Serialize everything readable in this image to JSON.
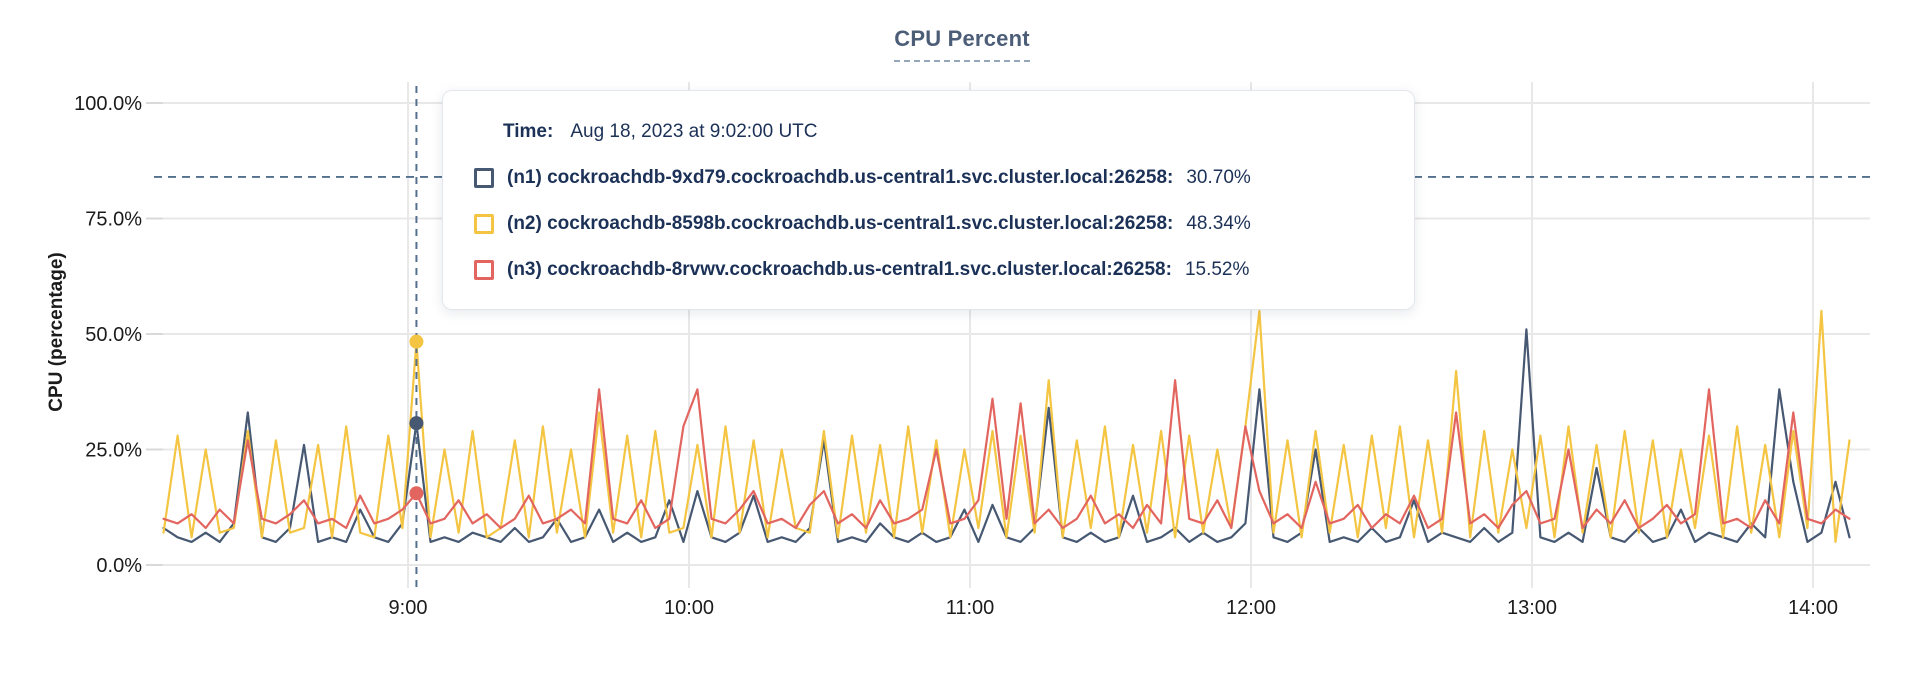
{
  "title": "CPU Percent",
  "tooltip": {
    "time_label": "Time:",
    "time_value": "Aug 18, 2023 at 9:02:00 UTC"
  },
  "colors": {
    "title": "#4c5e77",
    "tooltip_text": "#1c3157",
    "grid": "#e8e8e8",
    "tick_dash": "#d9d9d9",
    "axis_text": "#1b1b1b",
    "hover_guides": "#54708e",
    "background": "#ffffff"
  },
  "chart_data": {
    "type": "line",
    "title": "CPU Percent",
    "xlabel": "",
    "ylabel": "CPU (percentage)",
    "ylim": [
      0,
      100
    ],
    "grid": true,
    "legend_position": "tooltip-overlay",
    "y_ticks": [
      {
        "label": "100.0%",
        "value": 100
      },
      {
        "label": "75.0%",
        "value": 75
      },
      {
        "label": "50.0%",
        "value": 50
      },
      {
        "label": "25.0%",
        "value": 25
      },
      {
        "label": "0.0%",
        "value": 0
      }
    ],
    "x_ticks": [
      {
        "label": "9:00",
        "hour": 9
      },
      {
        "label": "10:00",
        "hour": 10
      },
      {
        "label": "11:00",
        "hour": 11
      },
      {
        "label": "12:00",
        "hour": 12
      },
      {
        "label": "13:00",
        "hour": 13
      },
      {
        "label": "14:00",
        "hour": 14
      }
    ],
    "x_start_hours": 8.13,
    "x_step_hours": 0.05,
    "threshold_line_value": 84,
    "hover": {
      "index": 18,
      "time_text": "Aug 18, 2023 at 9:02:00 UTC"
    },
    "series": [
      {
        "name": "(n1) cockroachdb-9xd79.cockroachdb.us-central1.svc.cluster.local:26258:",
        "color": "#475872",
        "hover_value_text": "30.70%",
        "hover_value": 30.7,
        "values": [
          8,
          6,
          5,
          7,
          5,
          9,
          33,
          6,
          5,
          8,
          26,
          5,
          6,
          5,
          12,
          6,
          5,
          9,
          30.7,
          5,
          6,
          5,
          7,
          6,
          5,
          8,
          5,
          6,
          10,
          5,
          6,
          12,
          5,
          7,
          5,
          6,
          14,
          5,
          16,
          6,
          5,
          7,
          15,
          5,
          6,
          5,
          8,
          27,
          5,
          6,
          5,
          9,
          6,
          5,
          7,
          5,
          6,
          12,
          5,
          13,
          6,
          5,
          8,
          34,
          6,
          5,
          7,
          5,
          6,
          15,
          5,
          6,
          8,
          5,
          7,
          5,
          6,
          9,
          38,
          6,
          5,
          7,
          25,
          5,
          6,
          5,
          8,
          5,
          6,
          14,
          5,
          7,
          6,
          5,
          8,
          5,
          7,
          51,
          6,
          5,
          7,
          5,
          21,
          6,
          5,
          8,
          5,
          6,
          12,
          5,
          7,
          6,
          5,
          9,
          6,
          38,
          18,
          5,
          7,
          18,
          6
        ]
      },
      {
        "name": "(n2) cockroachdb-8598b.cockroachdb.us-central1.svc.cluster.local:26258:",
        "color": "#f4c542",
        "hover_value_text": "48.34%",
        "hover_value": 48.34,
        "values": [
          7,
          28,
          6,
          25,
          7,
          8,
          29,
          6,
          27,
          7,
          8,
          26,
          6,
          30,
          7,
          6,
          28,
          8,
          48.34,
          6,
          25,
          7,
          29,
          6,
          8,
          27,
          6,
          30,
          7,
          25,
          6,
          33,
          7,
          28,
          6,
          29,
          7,
          8,
          26,
          6,
          30,
          7,
          27,
          6,
          25,
          8,
          7,
          29,
          6,
          28,
          7,
          26,
          6,
          30,
          7,
          27,
          6,
          25,
          8,
          29,
          6,
          28,
          7,
          40,
          6,
          27,
          8,
          30,
          6,
          26,
          7,
          29,
          6,
          28,
          7,
          25,
          8,
          30,
          55,
          7,
          27,
          6,
          29,
          7,
          26,
          6,
          28,
          8,
          30,
          6,
          27,
          7,
          42,
          6,
          29,
          7,
          25,
          8,
          28,
          6,
          30,
          7,
          26,
          6,
          29,
          7,
          27,
          6,
          25,
          8,
          28,
          6,
          30,
          7,
          26,
          6,
          29,
          8,
          55,
          5,
          27
        ]
      },
      {
        "name": "(n3) cockroachdb-8rvwv.cockroachdb.us-central1.svc.cluster.local:26258:",
        "color": "#e2655f",
        "hover_value_text": "15.52%",
        "hover_value": 15.52,
        "values": [
          10,
          9,
          11,
          8,
          12,
          9,
          27,
          10,
          9,
          11,
          14,
          9,
          10,
          8,
          15,
          9,
          10,
          12,
          15.52,
          9,
          10,
          14,
          9,
          11,
          8,
          10,
          15,
          9,
          10,
          12,
          9,
          38,
          10,
          9,
          14,
          8,
          10,
          30,
          38,
          10,
          9,
          12,
          16,
          9,
          10,
          8,
          13,
          16,
          9,
          11,
          8,
          14,
          9,
          10,
          12,
          25,
          9,
          10,
          14,
          36,
          10,
          35,
          9,
          12,
          8,
          10,
          15,
          9,
          11,
          8,
          13,
          9,
          40,
          10,
          9,
          14,
          8,
          30,
          16,
          9,
          11,
          8,
          18,
          9,
          10,
          13,
          8,
          11,
          9,
          15,
          8,
          10,
          33,
          9,
          11,
          8,
          13,
          16,
          9,
          10,
          25,
          8,
          12,
          9,
          14,
          8,
          10,
          13,
          9,
          11,
          38,
          9,
          10,
          8,
          14,
          9,
          33,
          10,
          9,
          12,
          10
        ]
      }
    ]
  }
}
